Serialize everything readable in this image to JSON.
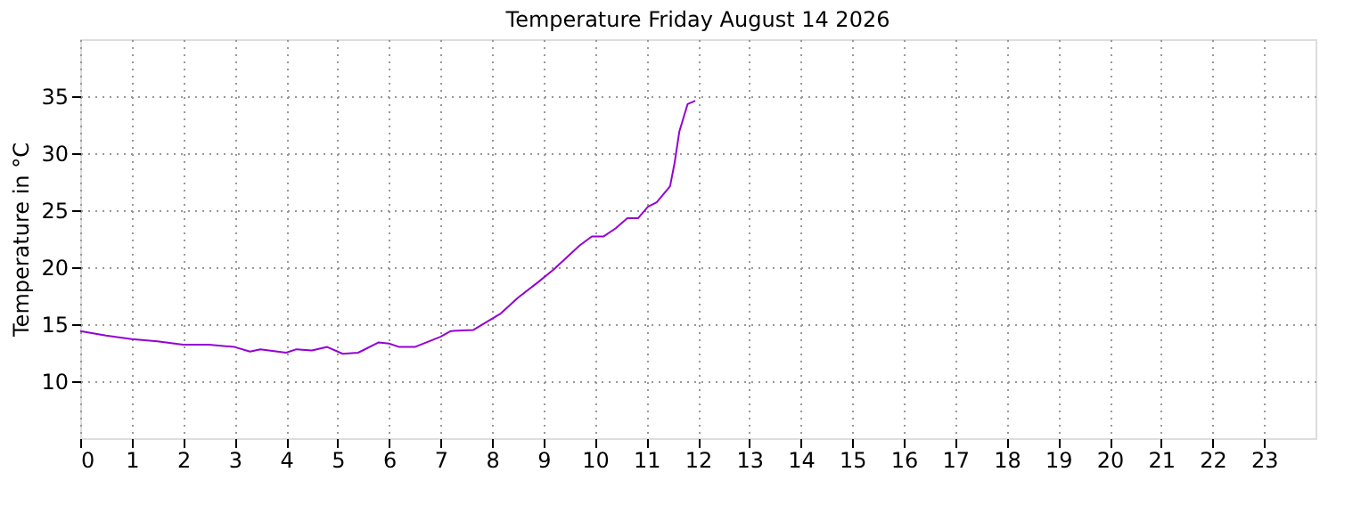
{
  "chart_data": {
    "type": "line",
    "title": "Temperature Friday August 14 2026",
    "ylabel": "Temperature in °C",
    "xlim": [
      0,
      24
    ],
    "xticks": [
      0,
      1,
      2,
      3,
      4,
      5,
      6,
      7,
      8,
      9,
      10,
      11,
      12,
      13,
      14,
      15,
      16,
      17,
      18,
      19,
      20,
      21,
      22,
      23
    ],
    "ylim": [
      5,
      40
    ],
    "yticks": [
      10,
      15,
      20,
      25,
      30,
      35
    ],
    "grid": true,
    "line_style": "solid",
    "marker": "none",
    "series": [
      {
        "color": "#9400d3",
        "x": [
          0,
          0.5,
          1,
          1.5,
          2,
          2.5,
          3,
          3.3,
          3.5,
          4,
          4.2,
          4.5,
          4.8,
          5.1,
          5.4,
          5.8,
          6.0,
          6.2,
          6.5,
          7.0,
          7.2,
          7.64,
          8.16,
          8.5,
          8.9,
          9.2,
          9.7,
          9.94,
          10.17,
          10.4,
          10.63,
          10.84,
          11.03,
          11.2,
          11.46,
          11.55,
          11.64,
          11.8,
          11.95
        ],
        "values": [
          14.4,
          14.0,
          13.7,
          13.5,
          13.2,
          13.2,
          13.0,
          12.6,
          12.8,
          12.5,
          12.8,
          12.7,
          13.0,
          12.4,
          12.5,
          13.4,
          13.3,
          13.0,
          13.0,
          13.9,
          14.4,
          14.5,
          15.9,
          17.3,
          18.7,
          19.8,
          21.9,
          22.7,
          22.7,
          23.4,
          24.3,
          24.3,
          25.3,
          25.7,
          27.1,
          29.2,
          31.9,
          34.3,
          34.6
        ]
      }
    ]
  }
}
